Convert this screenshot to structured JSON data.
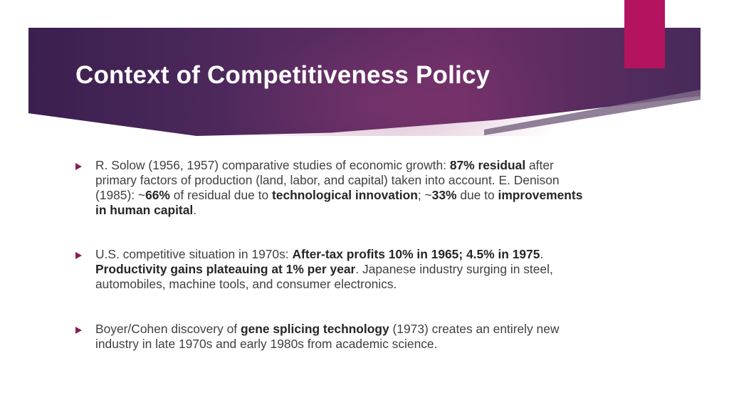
{
  "slide": {
    "title": "Context of Competitiveness Policy",
    "colors": {
      "banner": "#512a5e",
      "accent_tab": "#b4145f",
      "bullet_marker": "#8b1c56",
      "body_text": "#404040"
    },
    "bullets": [
      {
        "segments": [
          {
            "text": "R. Solow (1956, 1957) comparative studies of economic growth: ",
            "bold": false
          },
          {
            "text": "87% residual",
            "bold": true
          },
          {
            "text": " after primary factors of production (land, labor, and capital) taken into account.  E. Denison (1985): ~",
            "bold": false
          },
          {
            "text": "66%",
            "bold": true
          },
          {
            "text": " of residual due to ",
            "bold": false
          },
          {
            "text": "technological innovation",
            "bold": true
          },
          {
            "text": "; ~",
            "bold": false
          },
          {
            "text": "33%",
            "bold": true
          },
          {
            "text": " due to ",
            "bold": false
          },
          {
            "text": "improvements in human capital",
            "bold": true
          },
          {
            "text": ".",
            "bold": false
          }
        ]
      },
      {
        "segments": [
          {
            "text": "U.S. competitive situation in 1970s: ",
            "bold": false
          },
          {
            "text": "After-tax profits 10% in 1965; 4.5% in 1975",
            "bold": true
          },
          {
            "text": ".  ",
            "bold": false
          },
          {
            "text": "Productivity gains plateauing at 1% per year",
            "bold": true
          },
          {
            "text": ".  Japanese industry surging in steel, automobiles, machine tools, and consumer electronics.",
            "bold": false
          }
        ]
      },
      {
        "segments": [
          {
            "text": "Boyer/Cohen discovery of ",
            "bold": false
          },
          {
            "text": "gene splicing technology",
            "bold": true
          },
          {
            "text": " (1973) creates an entirely new industry in late 1970s and early 1980s from academic science.",
            "bold": false
          }
        ]
      }
    ]
  }
}
